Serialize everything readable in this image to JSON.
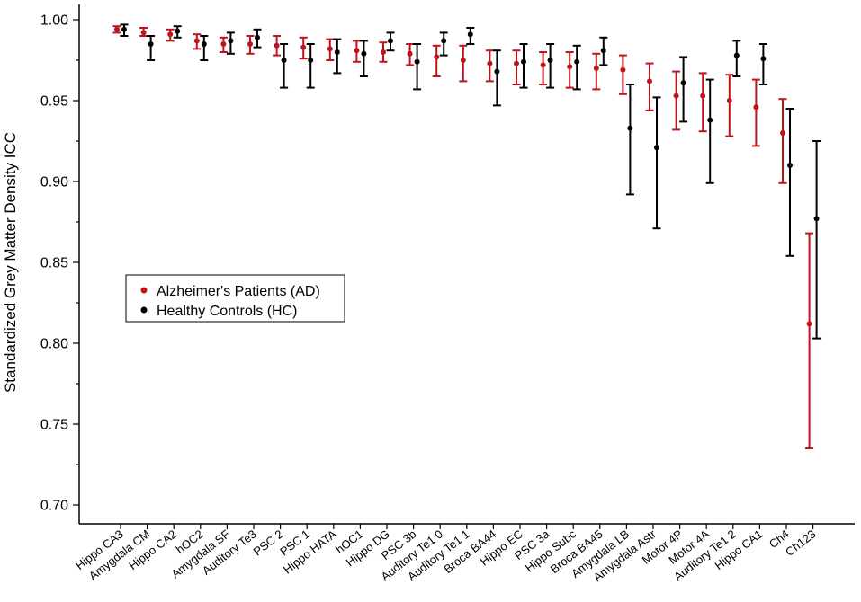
{
  "chart_data": {
    "type": "scatter",
    "title": "",
    "xlabel": "",
    "ylabel": "Standardized Grey Matter Density ICC",
    "ylim": [
      0.7,
      1.0
    ],
    "yticks": [
      "0.70",
      "0.75",
      "0.80",
      "0.85",
      "0.90",
      "0.95",
      "1.00"
    ],
    "grid": false,
    "legend_position": "middle-left",
    "categories": [
      "Hippo CA3",
      "Amygdala CM",
      "Hippo CA2",
      "hOC2",
      "Amygdala SF",
      "Auditory Te3",
      "PSC 2",
      "PSC 1",
      "Hippo HATA",
      "hOC1",
      "Hippo DG",
      "PSC 3b",
      "Auditory Te1 0",
      "Auditory Te1 1",
      "Broca BA44",
      "Hippo EC",
      "PSC 3a",
      "Hippo Subc",
      "Broca BA45",
      "Amygdala LB",
      "Amygdala Astr",
      "Motor 4P",
      "Motor 4A",
      "Auditory Te1 2",
      "Hippo CA1",
      "Ch4",
      "Ch123"
    ],
    "series": [
      {
        "name": "Alzheimer's Patients (AD)",
        "color": "#c0141c",
        "values": [
          0.994,
          0.992,
          0.991,
          0.987,
          0.985,
          0.985,
          0.984,
          0.983,
          0.982,
          0.981,
          0.98,
          0.979,
          0.977,
          0.975,
          0.973,
          0.973,
          0.972,
          0.971,
          0.97,
          0.969,
          0.962,
          0.953,
          0.953,
          0.95,
          0.946,
          0.93,
          0.812
        ],
        "lower": [
          0.992,
          0.99,
          0.987,
          0.982,
          0.98,
          0.979,
          0.978,
          0.976,
          0.975,
          0.974,
          0.974,
          0.972,
          0.965,
          0.962,
          0.962,
          0.96,
          0.96,
          0.958,
          0.957,
          0.954,
          0.944,
          0.932,
          0.931,
          0.928,
          0.922,
          0.899,
          0.735
        ],
        "upper": [
          0.996,
          0.995,
          0.994,
          0.991,
          0.989,
          0.99,
          0.99,
          0.989,
          0.988,
          0.987,
          0.986,
          0.985,
          0.984,
          0.984,
          0.981,
          0.981,
          0.98,
          0.98,
          0.979,
          0.978,
          0.973,
          0.968,
          0.967,
          0.966,
          0.963,
          0.951,
          0.868
        ]
      },
      {
        "name": "Healthy Controls (HC)",
        "color": "#000000",
        "values": [
          0.994,
          0.985,
          0.993,
          0.985,
          0.987,
          0.989,
          0.975,
          0.975,
          0.98,
          0.979,
          0.987,
          0.974,
          0.987,
          0.991,
          0.968,
          0.974,
          0.975,
          0.974,
          0.981,
          0.933,
          0.921,
          0.961,
          0.938,
          0.978,
          0.976,
          0.91,
          0.877
        ],
        "lower": [
          0.99,
          0.975,
          0.989,
          0.975,
          0.979,
          0.983,
          0.958,
          0.958,
          0.967,
          0.965,
          0.981,
          0.957,
          0.978,
          0.985,
          0.947,
          0.958,
          0.958,
          0.957,
          0.972,
          0.892,
          0.871,
          0.937,
          0.899,
          0.965,
          0.96,
          0.854,
          0.803
        ],
        "upper": [
          0.997,
          0.99,
          0.996,
          0.99,
          0.992,
          0.994,
          0.985,
          0.985,
          0.988,
          0.987,
          0.992,
          0.985,
          0.992,
          0.995,
          0.981,
          0.985,
          0.985,
          0.984,
          0.989,
          0.96,
          0.952,
          0.977,
          0.963,
          0.987,
          0.985,
          0.945,
          0.925
        ]
      }
    ]
  }
}
